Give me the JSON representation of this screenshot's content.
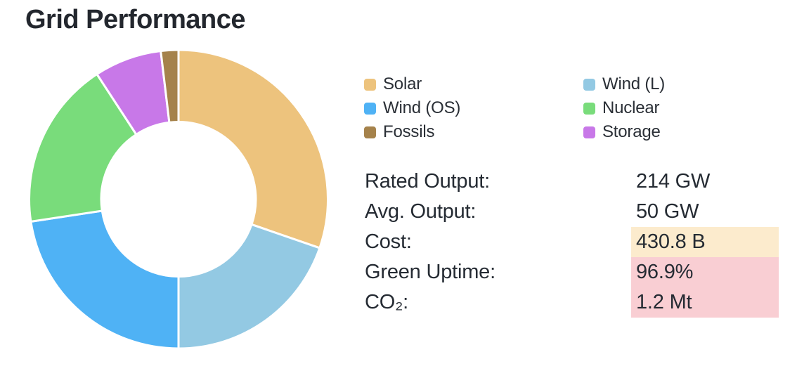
{
  "title": "Grid Performance",
  "theme": {
    "background": "#FFFFFF",
    "text": "#23272E",
    "highlight_orange": "#FCEBCD",
    "highlight_pink": "#F9CED3"
  },
  "legend": {
    "items": [
      {
        "label": "Solar",
        "color": "#EDC37D"
      },
      {
        "label": "Wind (L)",
        "color": "#93C9E3"
      },
      {
        "label": "Wind (OS)",
        "color": "#4FB2F5"
      },
      {
        "label": "Nuclear",
        "color": "#79DC7B"
      },
      {
        "label": "Fossils",
        "color": "#A5824B"
      },
      {
        "label": "Storage",
        "color": "#C878E8"
      }
    ]
  },
  "chart_data": [
    {
      "type": "pie",
      "subtype": "donut",
      "title": "Grid Performance",
      "unit": "percent_of_total",
      "start_angle_deg": 0,
      "clockwise": true,
      "inner_radius_ratio": 0.52,
      "legend_position": "right",
      "slices": [
        {
          "label": "Solar",
          "value": 30.3,
          "color": "#EDC37D"
        },
        {
          "label": "Wind (L)",
          "value": 19.7,
          "color": "#93C9E3"
        },
        {
          "label": "Wind (OS)",
          "value": 22.6,
          "color": "#4FB2F5"
        },
        {
          "label": "Nuclear",
          "value": 18.2,
          "color": "#79DC7B"
        },
        {
          "label": "Storage",
          "value": 7.3,
          "color": "#C878E8"
        },
        {
          "label": "Fossils",
          "value": 1.9,
          "color": "#A5824B"
        }
      ]
    },
    {
      "type": "table",
      "rows": [
        {
          "label": "Rated Output:",
          "value": "214 GW",
          "highlight": "none",
          "highlight_color": "transparent"
        },
        {
          "label": "Avg. Output:",
          "value": "50 GW",
          "highlight": "none",
          "highlight_color": "transparent"
        },
        {
          "label": "Cost:",
          "value": "430.8 B",
          "highlight": "orange",
          "highlight_color": "#FCEBCD"
        },
        {
          "label": "Green Uptime:",
          "value": "96.9%",
          "highlight": "pink",
          "highlight_color": "#F9CED3"
        },
        {
          "label": "CO₂:",
          "value": "1.2 Mt",
          "highlight": "pink",
          "highlight_color": "#F9CED3"
        }
      ]
    }
  ]
}
